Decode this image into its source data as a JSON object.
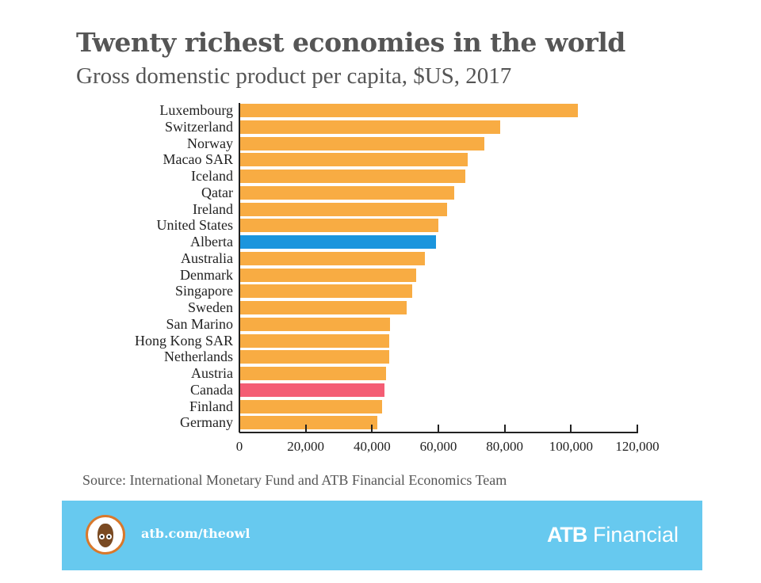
{
  "header": {
    "title": "Twenty richest economies in the world",
    "subtitle": "Gross domenstic product per capita, $US, 2017"
  },
  "chart_data": {
    "type": "bar",
    "orientation": "horizontal",
    "title": "Twenty richest economies in the world",
    "subtitle": "Gross domenstic product per capita, $US, 2017",
    "xlabel": "",
    "ylabel": "",
    "xlim": [
      0,
      120000
    ],
    "x_ticks": [
      0,
      20000,
      40000,
      60000,
      80000,
      100000,
      120000
    ],
    "x_tick_labels": [
      "0",
      "20,000",
      "40,000",
      "60,000",
      "80,000",
      "100,000",
      "120,000"
    ],
    "grid": false,
    "legend": null,
    "categories": [
      "Luxembourg",
      "Switzerland",
      "Norway",
      "Macao SAR",
      "Iceland",
      "Qatar",
      "Ireland",
      "United States",
      "Alberta",
      "Australia",
      "Denmark",
      "Singapore",
      "Sweden",
      "San Marino",
      "Hong Kong SAR",
      "Netherlands",
      "Austria",
      "Canada",
      "Finland",
      "Germany"
    ],
    "values": [
      101800,
      78400,
      73700,
      68600,
      67900,
      64600,
      62400,
      59800,
      59000,
      55700,
      53100,
      51900,
      50200,
      45200,
      45000,
      44900,
      44000,
      43500,
      42900,
      41400
    ],
    "colors": {
      "default": "#F8AC43",
      "Alberta": "#1B95DD",
      "Canada": "#F45D74"
    },
    "source": "Source: International Monetary Fund and ATB Financial Economics Team"
  },
  "footer": {
    "source": "Source: International Monetary Fund and ATB Financial Economics Team"
  },
  "banner": {
    "background": "#67C9EF",
    "icon": "owl-icon",
    "url": "atb.com/theowl",
    "brand_bold": "ATB",
    "brand_rest": " Financial"
  }
}
